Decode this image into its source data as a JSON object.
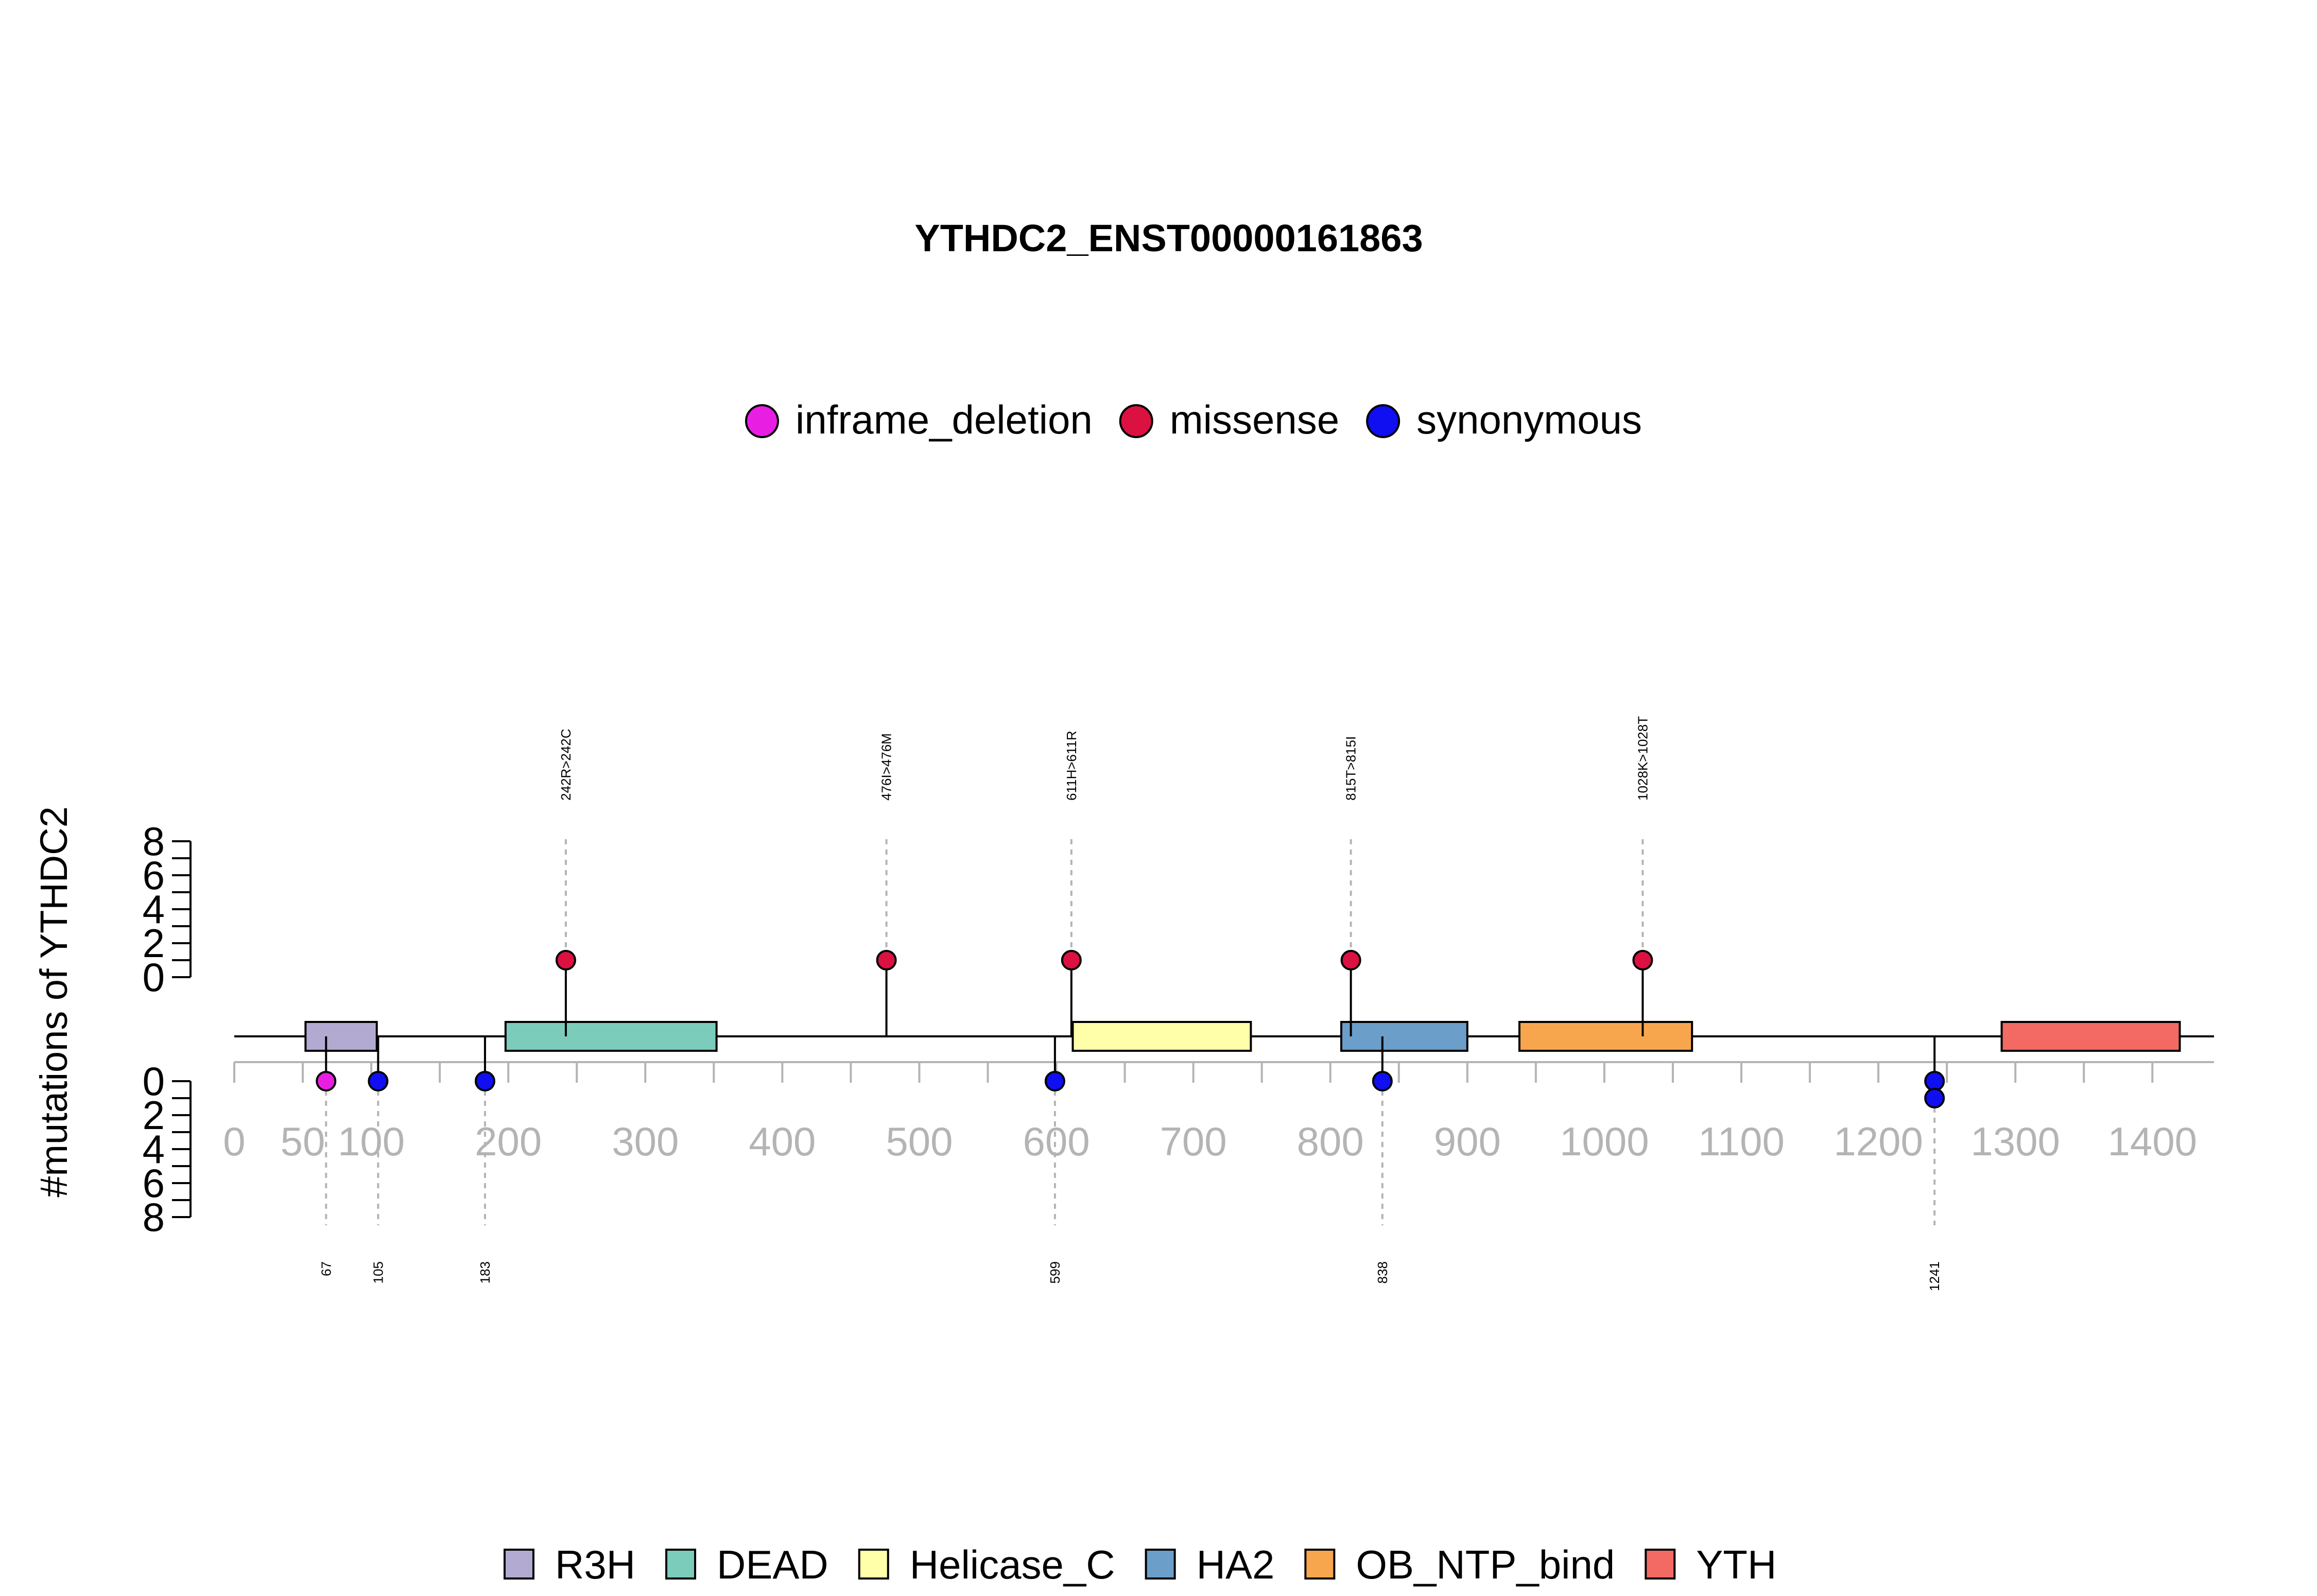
{
  "chart_data": {
    "type": "lollipop",
    "title": "YTHDC2_ENST00000161863",
    "ylabel": "#mutations of YTHDC2",
    "x_ticks": [
      0,
      50,
      100,
      200,
      300,
      400,
      500,
      600,
      700,
      800,
      900,
      1000,
      1100,
      1200,
      1300,
      1400
    ],
    "x_range": [
      0,
      1445
    ],
    "y_ticks_top": [
      0,
      2,
      4,
      6,
      8
    ],
    "y_ticks_bottom": [
      0,
      2,
      4,
      6,
      8
    ],
    "mutation_legend": [
      {
        "label": "inframe_deletion",
        "color": "#E81EE2"
      },
      {
        "label": "missense",
        "color": "#DB1141"
      },
      {
        "label": "synonymous",
        "color": "#0F0FF2"
      }
    ],
    "domains": [
      {
        "name": "R3H",
        "start": 52,
        "end": 104,
        "color": "#B3AAD2"
      },
      {
        "name": "DEAD",
        "start": 198,
        "end": 352,
        "color": "#7CCCBB"
      },
      {
        "name": "Helicase_C",
        "start": 612,
        "end": 742,
        "color": "#FFFFAA"
      },
      {
        "name": "HA2",
        "start": 808,
        "end": 900,
        "color": "#6B9EC9"
      },
      {
        "name": "OB_NTP_bind",
        "start": 938,
        "end": 1064,
        "color": "#F8A64D"
      },
      {
        "name": "YTH",
        "start": 1290,
        "end": 1420,
        "color": "#F26A63"
      }
    ],
    "mutations_top": [
      {
        "pos": 242,
        "label": "242R>242C",
        "type": "missense",
        "count": 1
      },
      {
        "pos": 476,
        "label": "476I>476M",
        "type": "missense",
        "count": 1
      },
      {
        "pos": 611,
        "label": "611H>611R",
        "type": "missense",
        "count": 1
      },
      {
        "pos": 815,
        "label": "815T>815I",
        "type": "missense",
        "count": 1
      },
      {
        "pos": 1028,
        "label": "1028K>1028T",
        "type": "missense",
        "count": 1
      }
    ],
    "mutations_bottom": [
      {
        "pos": 67,
        "label": "67",
        "type": "inframe_deletion",
        "count": 1
      },
      {
        "pos": 105,
        "label": "105",
        "type": "synonymous",
        "count": 1
      },
      {
        "pos": 183,
        "label": "183",
        "type": "synonymous",
        "count": 1
      },
      {
        "pos": 599,
        "label": "599",
        "type": "synonymous",
        "count": 1
      },
      {
        "pos": 838,
        "label": "838",
        "type": "synonymous",
        "count": 1
      },
      {
        "pos": 1241,
        "label": "1241",
        "type": "synonymous",
        "count": 2
      }
    ]
  }
}
